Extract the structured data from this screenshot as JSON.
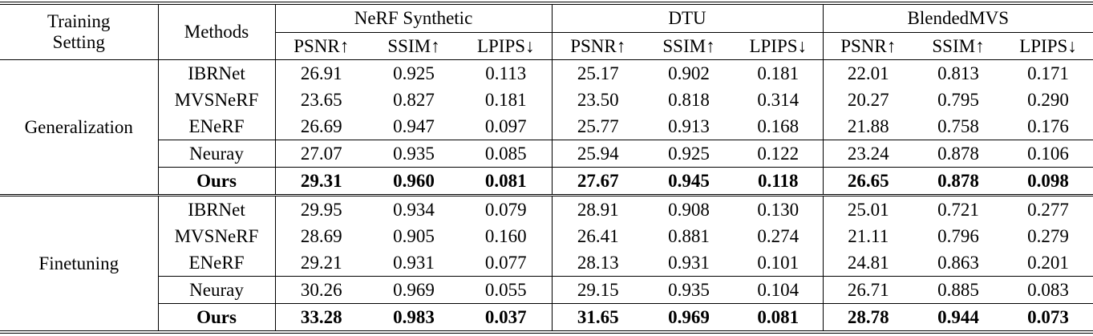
{
  "table": {
    "header": {
      "setting": "Training Setting",
      "methods": "Methods",
      "datasets": [
        {
          "name": "NeRF Synthetic",
          "metrics": [
            "PSNR↑",
            "SSIM↑",
            "LPIPS↓"
          ]
        },
        {
          "name": "DTU",
          "metrics": [
            "PSNR↑",
            "SSIM↑",
            "LPIPS↓"
          ]
        },
        {
          "name": "BlendedMVS",
          "metrics": [
            "PSNR↑",
            "SSIM↑",
            "LPIPS↓"
          ]
        }
      ]
    },
    "groups": [
      {
        "setting": "Generalization",
        "rows": [
          [
            "IBRNet",
            "26.91",
            "0.925",
            "0.113",
            "25.17",
            "0.902",
            "0.181",
            "22.01",
            "0.813",
            "0.171"
          ],
          [
            "MVSNeRF",
            "23.65",
            "0.827",
            "0.181",
            "23.50",
            "0.818",
            "0.314",
            "20.27",
            "0.795",
            "0.290"
          ],
          [
            "ENeRF",
            "26.69",
            "0.947",
            "0.097",
            "25.77",
            "0.913",
            "0.168",
            "21.88",
            "0.758",
            "0.176"
          ],
          [
            "Neuray",
            "27.07",
            "0.935",
            "0.085",
            "25.94",
            "0.925",
            "0.122",
            "23.24",
            "0.878",
            "0.106"
          ],
          [
            "Ours",
            "29.31",
            "0.960",
            "0.081",
            "27.67",
            "0.945",
            "0.118",
            "26.65",
            "0.878",
            "0.098"
          ]
        ]
      },
      {
        "setting": "Finetuning",
        "rows": [
          [
            "IBRNet",
            "29.95",
            "0.934",
            "0.079",
            "28.91",
            "0.908",
            "0.130",
            "25.01",
            "0.721",
            "0.277"
          ],
          [
            "MVSNeRF",
            "28.69",
            "0.905",
            "0.160",
            "26.41",
            "0.881",
            "0.274",
            "21.11",
            "0.796",
            "0.279"
          ],
          [
            "ENeRF",
            "29.21",
            "0.931",
            "0.077",
            "28.13",
            "0.931",
            "0.101",
            "24.81",
            "0.863",
            "0.201"
          ],
          [
            "Neuray",
            "30.26",
            "0.969",
            "0.055",
            "29.15",
            "0.935",
            "0.104",
            "26.71",
            "0.885",
            "0.083"
          ],
          [
            "Ours",
            "33.28",
            "0.983",
            "0.037",
            "31.65",
            "0.969",
            "0.081",
            "28.78",
            "0.944",
            "0.073"
          ]
        ]
      }
    ]
  }
}
